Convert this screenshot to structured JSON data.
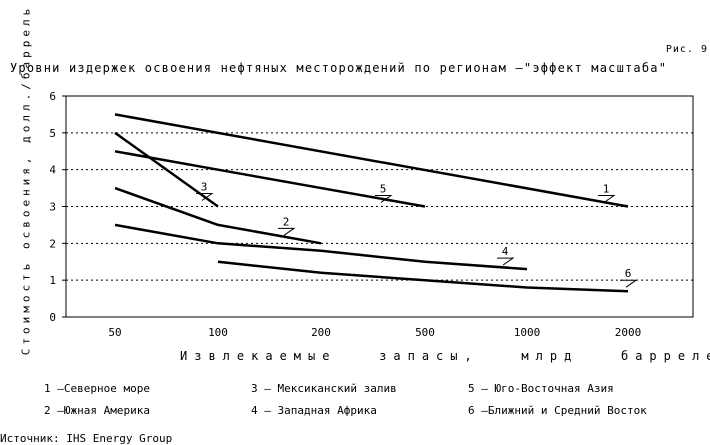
{
  "figure_label": "Рис. 9",
  "source": "Источник: IHS Energy Group",
  "legend": [
    {
      "id": "1",
      "text": "1 –Северное море"
    },
    {
      "id": "2",
      "text": "2 –Южная Америка"
    },
    {
      "id": "3",
      "text": "3 – Мексиканский залив"
    },
    {
      "id": "4",
      "text": "4 – Западная Африка"
    },
    {
      "id": "5",
      "text": "5 – Юго-Восточная Азия"
    },
    {
      "id": "6",
      "text": "6 –Ближний и Средний Восток"
    }
  ],
  "chart_data": {
    "type": "line",
    "title": "Уровни издержек освоения нефтяных месторождений по регионам –\"эффект масштаба\"",
    "xlabel": "Извлекаемые   запасы,   млрд   баррелей",
    "ylabel": "Стоимость освоения, долл./баррель",
    "x_scale": "log",
    "categories": [
      "50",
      "100",
      "200",
      "500",
      "1000",
      "2000"
    ],
    "ylim": [
      0,
      6
    ],
    "yticks": [
      0,
      1,
      2,
      3,
      4,
      5,
      6
    ],
    "grid": "horizontal dotted",
    "series": [
      {
        "name": "1",
        "color": "#000000",
        "points": [
          [
            50,
            5.5
          ],
          [
            2000,
            3.0
          ]
        ]
      },
      {
        "name": "2",
        "color": "#000000",
        "points": [
          [
            50,
            3.5
          ],
          [
            100,
            2.5
          ],
          [
            200,
            2.0
          ]
        ]
      },
      {
        "name": "3",
        "color": "#000000",
        "points": [
          [
            50,
            5.0
          ],
          [
            100,
            3.0
          ]
        ]
      },
      {
        "name": "4",
        "color": "#000000",
        "points": [
          [
            50,
            2.5
          ],
          [
            100,
            2.0
          ],
          [
            200,
            1.8
          ],
          [
            500,
            1.5
          ],
          [
            1000,
            1.3
          ]
        ]
      },
      {
        "name": "5",
        "color": "#000000",
        "points": [
          [
            50,
            4.5
          ],
          [
            100,
            4.0
          ],
          [
            500,
            3.0
          ]
        ]
      },
      {
        "name": "6",
        "color": "#000000",
        "points": [
          [
            100,
            1.5
          ],
          [
            200,
            1.2
          ],
          [
            500,
            1.0
          ],
          [
            1000,
            0.8
          ],
          [
            2000,
            0.7
          ]
        ]
      }
    ]
  }
}
